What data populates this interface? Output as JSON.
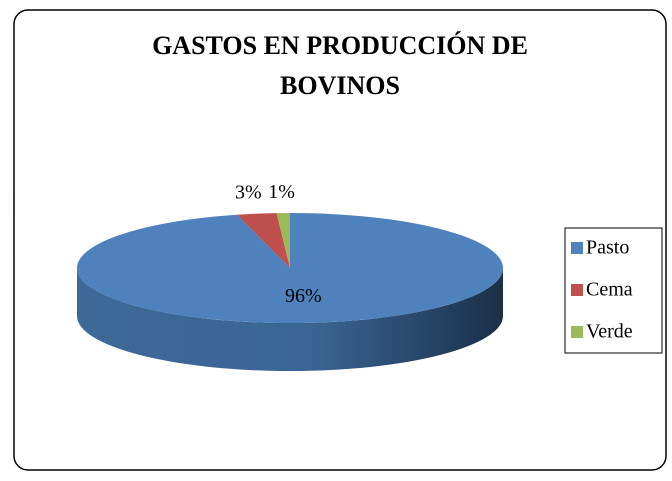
{
  "chart_data": {
    "type": "pie",
    "title": "GASTOS EN PRODUCCIÓN DE BOVINOS",
    "categories": [
      "Pasto",
      "Cema",
      "Verde"
    ],
    "values": [
      96,
      3,
      1
    ],
    "value_labels": [
      "96%",
      "3%",
      "1%"
    ],
    "colors": [
      "#4f81bd",
      "#c0504d",
      "#9bbb59"
    ],
    "legend": "right"
  }
}
